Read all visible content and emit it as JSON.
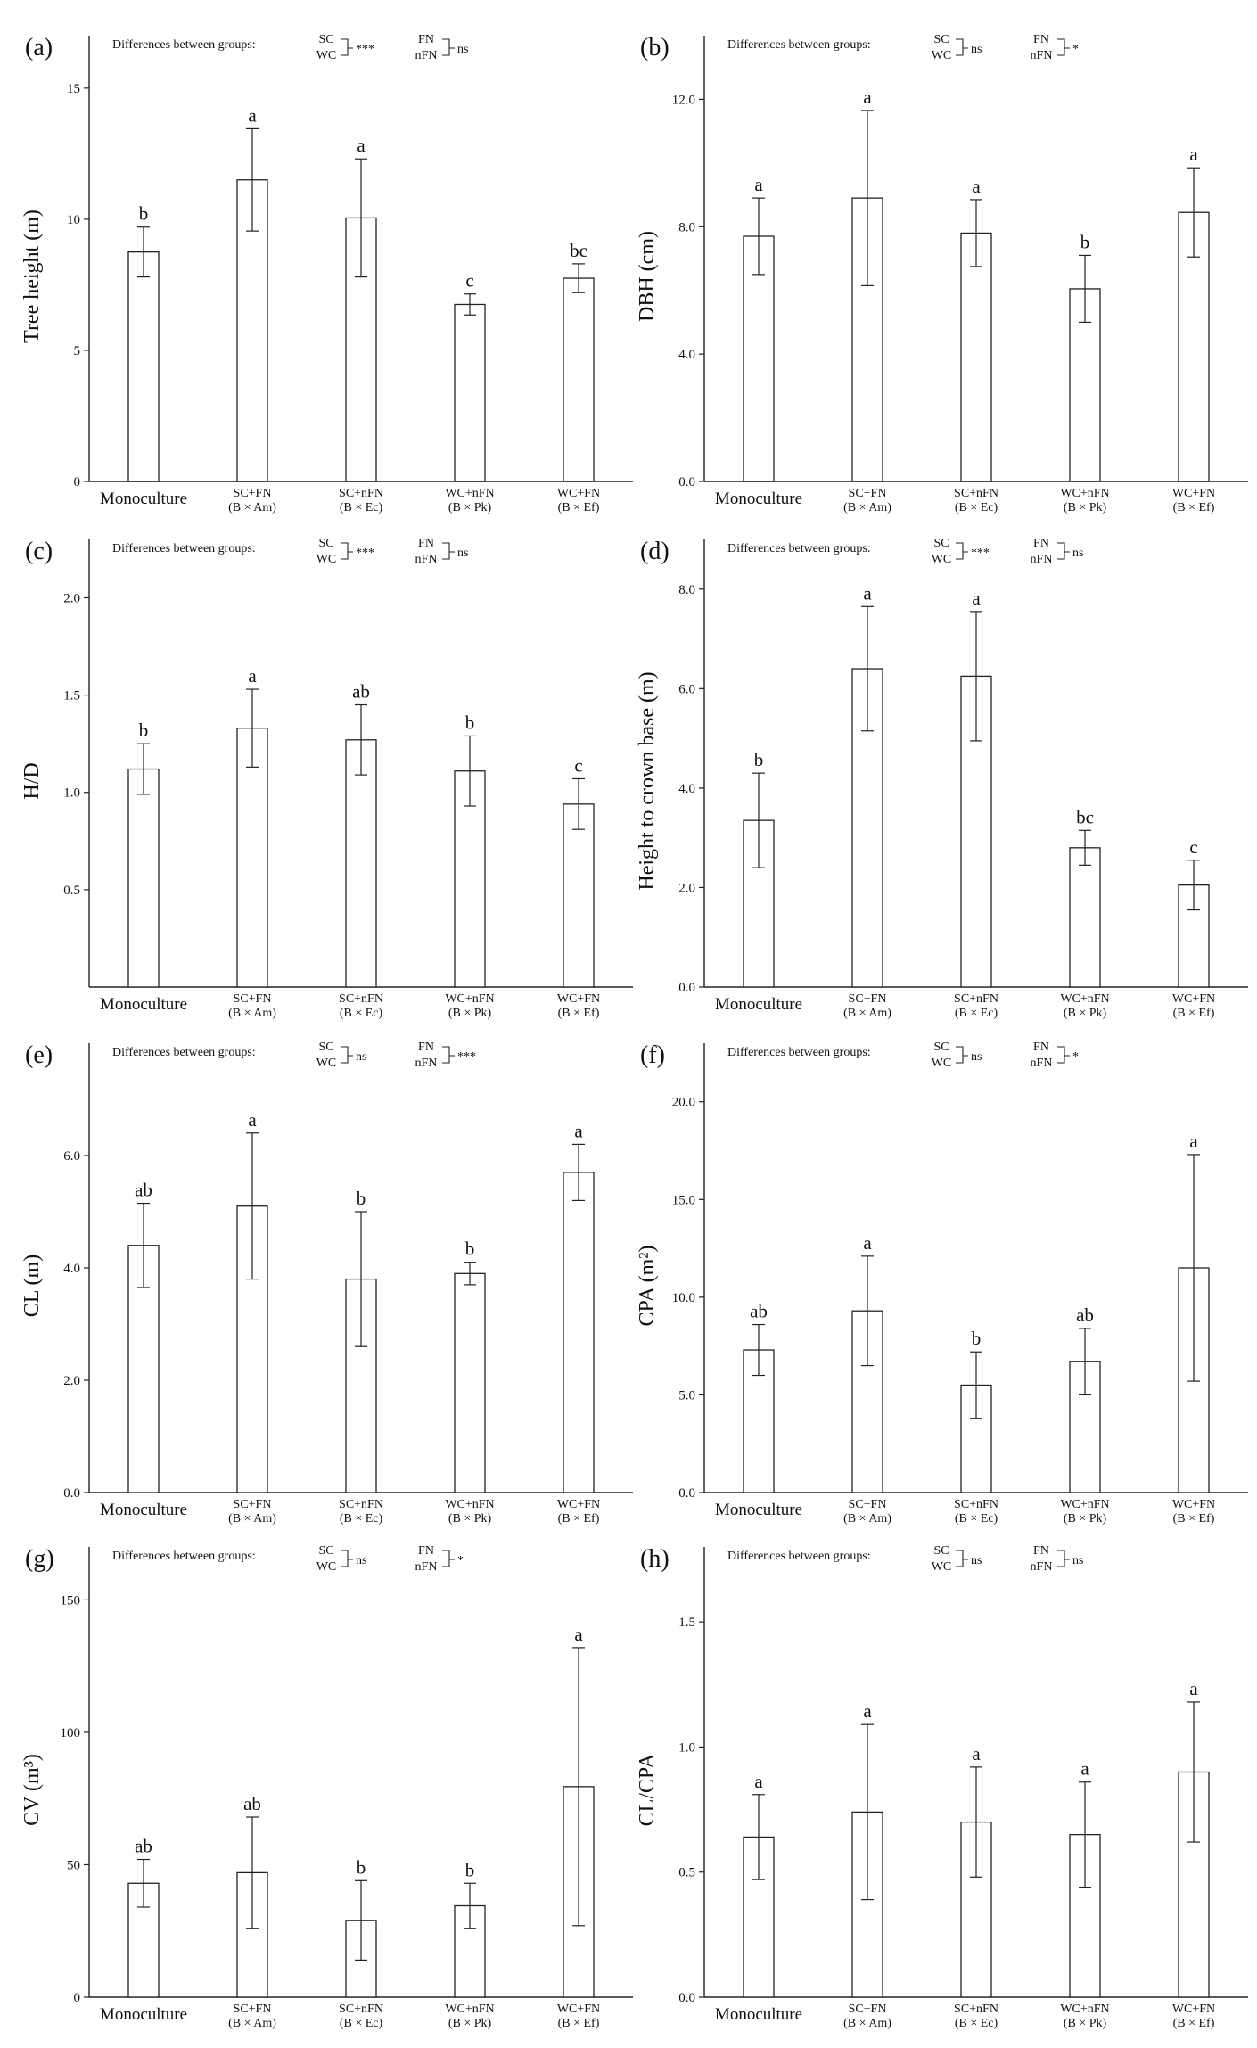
{
  "figure": {
    "comparison_header": "Differences between groups:",
    "group_a_top": "SC",
    "group_a_bottom": "WC",
    "group_b_top": "FN",
    "group_b_bottom": "nFN",
    "categories": [
      [
        "Monoculture",
        ""
      ],
      [
        "SC+FN",
        "(B × Am)"
      ],
      [
        "SC+nFN",
        "(B × Ec)"
      ],
      [
        "WC+nFN",
        "(B × Pk)"
      ],
      [
        "WC+FN",
        "(B × Ef)"
      ]
    ]
  },
  "chart_data": [
    {
      "type": "bar",
      "panel": "(a)",
      "ylabel": "Tree height (m)",
      "ylim": [
        0,
        17
      ],
      "yticks": [
        0,
        5,
        10,
        15
      ],
      "tick_decimals": 0,
      "categories": [
        "Monoculture",
        "SC+FN (B × Am)",
        "SC+nFN (B × Ec)",
        "WC+nFN (B × Pk)",
        "WC+FN (B × Ef)"
      ],
      "values": [
        8.75,
        11.5,
        10.05,
        6.75,
        7.75
      ],
      "errors": [
        0.95,
        1.95,
        2.25,
        0.4,
        0.55
      ],
      "letters": [
        "b",
        "a",
        "a",
        "c",
        "bc"
      ],
      "sc_wc": "***",
      "fn_nfn": "ns"
    },
    {
      "type": "bar",
      "panel": "(b)",
      "ylabel": "DBH (cm)",
      "ylim": [
        0,
        14
      ],
      "yticks": [
        0,
        4,
        8,
        12
      ],
      "tick_decimals": 1,
      "categories": [
        "Monoculture",
        "SC+FN (B × Am)",
        "SC+nFN (B × Ec)",
        "WC+nFN (B × Pk)",
        "WC+FN (B × Ef)"
      ],
      "values": [
        7.7,
        8.9,
        7.8,
        6.05,
        8.45
      ],
      "errors": [
        1.2,
        2.75,
        1.05,
        1.05,
        1.4
      ],
      "letters": [
        "a",
        "a",
        "a",
        "b",
        "a"
      ],
      "sc_wc": "ns",
      "fn_nfn": "*"
    },
    {
      "type": "bar",
      "panel": "(c)",
      "ylabel": "H/D",
      "ylim": [
        0,
        2.3
      ],
      "yticks": [
        0.5,
        1.0,
        1.5,
        2.0
      ],
      "tick_decimals": 1,
      "categories": [
        "Monoculture",
        "SC+FN (B × Am)",
        "SC+nFN (B × Ec)",
        "WC+nFN (B × Pk)",
        "WC+FN (B × Ef)"
      ],
      "values": [
        1.12,
        1.33,
        1.27,
        1.11,
        0.94
      ],
      "errors": [
        0.13,
        0.2,
        0.18,
        0.18,
        0.13
      ],
      "letters": [
        "b",
        "a",
        "ab",
        "b",
        "c"
      ],
      "sc_wc": "***",
      "fn_nfn": "ns"
    },
    {
      "type": "bar",
      "panel": "(d)",
      "ylabel": "Height to crown base (m)",
      "ylim": [
        0,
        9
      ],
      "yticks": [
        0,
        2,
        4,
        6,
        8
      ],
      "tick_decimals": 1,
      "categories": [
        "Monoculture",
        "SC+FN (B × Am)",
        "SC+nFN (B × Ec)",
        "WC+nFN (B × Pk)",
        "WC+FN (B × Ef)"
      ],
      "values": [
        3.35,
        6.4,
        6.25,
        2.8,
        2.05
      ],
      "errors": [
        0.95,
        1.25,
        1.3,
        0.35,
        0.5
      ],
      "letters": [
        "b",
        "a",
        "a",
        "bc",
        "c"
      ],
      "sc_wc": "***",
      "fn_nfn": "ns"
    },
    {
      "type": "bar",
      "panel": "(e)",
      "ylabel": "CL (m)",
      "ylim": [
        0,
        8
      ],
      "yticks": [
        0,
        2,
        4,
        6
      ],
      "tick_decimals": 1,
      "categories": [
        "Monoculture",
        "SC+FN (B × Am)",
        "SC+nFN (B × Ec)",
        "WC+nFN (B × Pk)",
        "WC+FN (B × Ef)"
      ],
      "values": [
        4.4,
        5.1,
        3.8,
        3.9,
        5.7
      ],
      "errors": [
        0.75,
        1.3,
        1.2,
        0.2,
        0.5
      ],
      "letters": [
        "ab",
        "a",
        "b",
        "b",
        "a"
      ],
      "sc_wc": "ns",
      "fn_nfn": "***"
    },
    {
      "type": "bar",
      "panel": "(f)",
      "ylabel": "CPA (m²)",
      "ylim": [
        0,
        23
      ],
      "yticks": [
        0,
        5,
        10,
        15,
        20
      ],
      "tick_decimals": 1,
      "categories": [
        "Monoculture",
        "SC+FN (B × Am)",
        "SC+nFN (B × Ec)",
        "WC+nFN (B × Pk)",
        "WC+FN (B × Ef)"
      ],
      "values": [
        7.3,
        9.3,
        5.5,
        6.7,
        11.5
      ],
      "errors": [
        1.3,
        2.8,
        1.7,
        1.7,
        5.8
      ],
      "letters": [
        "ab",
        "a",
        "b",
        "ab",
        "a"
      ],
      "sc_wc": "ns",
      "fn_nfn": "*"
    },
    {
      "type": "bar",
      "panel": "(g)",
      "ylabel": "CV (m³)",
      "ylim": [
        0,
        170
      ],
      "yticks": [
        0,
        50,
        100,
        150
      ],
      "tick_decimals": 0,
      "categories": [
        "Monoculture",
        "SC+FN (B × Am)",
        "SC+nFN (B × Ec)",
        "WC+nFN (B × Pk)",
        "WC+FN (B × Ef)"
      ],
      "values": [
        43,
        47,
        29,
        34.5,
        79.5
      ],
      "errors": [
        9,
        21,
        15,
        8.5,
        52.5
      ],
      "letters": [
        "ab",
        "ab",
        "b",
        "b",
        "a"
      ],
      "sc_wc": "ns",
      "fn_nfn": "*"
    },
    {
      "type": "bar",
      "panel": "(h)",
      "ylabel": "CL/CPA",
      "ylim": [
        0,
        1.8
      ],
      "yticks": [
        0,
        0.5,
        1.0,
        1.5
      ],
      "tick_decimals": 1,
      "categories": [
        "Monoculture",
        "SC+FN (B × Am)",
        "SC+nFN (B × Ec)",
        "WC+nFN (B × Pk)",
        "WC+FN (B × Ef)"
      ],
      "values": [
        0.64,
        0.74,
        0.7,
        0.65,
        0.9
      ],
      "errors": [
        0.17,
        0.35,
        0.22,
        0.21,
        0.28
      ],
      "letters": [
        "a",
        "a",
        "a",
        "a",
        "a"
      ],
      "sc_wc": "ns",
      "fn_nfn": "ns"
    }
  ]
}
